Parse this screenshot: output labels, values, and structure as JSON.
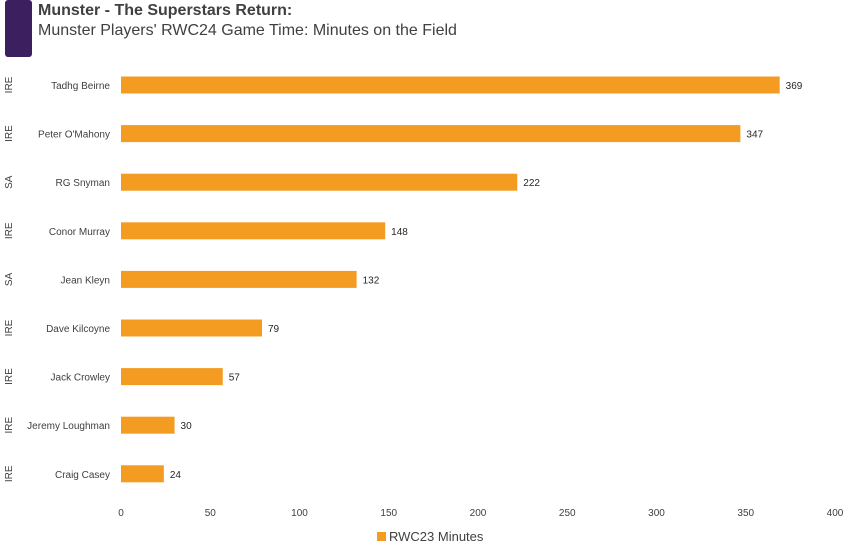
{
  "header": {
    "title": "Munster - The Superstars Return:",
    "subtitle": "Munster Players' RWC24 Game Time: Minutes on the Field",
    "logo_color": "#3b1f5e"
  },
  "chart_data": {
    "type": "bar",
    "orientation": "horizontal",
    "categories": [
      "Tadhg Beirne",
      "Peter O'Mahony",
      "RG Snyman",
      "Conor Murray",
      "Jean Kleyn",
      "Dave Kilcoyne",
      "Jack Crowley",
      "Jeremy Loughman",
      "Craig Casey"
    ],
    "groups": [
      "IRE",
      "IRE",
      "SA",
      "IRE",
      "SA",
      "IRE",
      "IRE",
      "IRE",
      "IRE"
    ],
    "series": [
      {
        "name": "RWC23 Minutes",
        "values": [
          369,
          347,
          222,
          148,
          132,
          79,
          57,
          30,
          24
        ],
        "color": "#f49b22"
      }
    ],
    "xlim": [
      0,
      400
    ],
    "xticks": [
      0,
      50,
      100,
      150,
      200,
      250,
      300,
      350,
      400
    ],
    "data_labels": true,
    "grid": false,
    "legend_position": "bottom"
  }
}
